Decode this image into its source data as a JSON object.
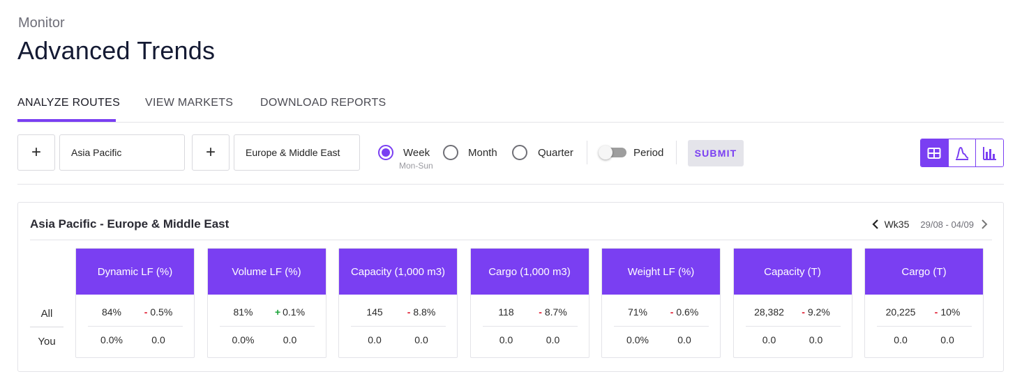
{
  "header": {
    "supertitle": "Monitor",
    "title": "Advanced Trends"
  },
  "tabs": [
    {
      "label": "ANALYZE ROUTES",
      "active": true
    },
    {
      "label": "VIEW MARKETS",
      "active": false
    },
    {
      "label": "DOWNLOAD REPORTS",
      "active": false
    }
  ],
  "toolbar": {
    "origin": {
      "add_label": "+",
      "value": "Asia Pacific"
    },
    "destination": {
      "add_label": "+",
      "value": "Europe & Middle East"
    },
    "periods": [
      {
        "label": "Week",
        "sublabel": "Mon-Sun",
        "checked": true
      },
      {
        "label": "Month",
        "checked": false
      },
      {
        "label": "Quarter",
        "checked": false
      }
    ],
    "period_toggle": {
      "label": "Period",
      "on": false
    },
    "submit_label": "SUBMIT",
    "views": [
      {
        "icon": "table-grid-icon",
        "active": true
      },
      {
        "icon": "curve-chart-icon",
        "active": false
      },
      {
        "icon": "bar-chart-icon",
        "active": false
      }
    ]
  },
  "card": {
    "title": "Asia Pacific - Europe & Middle East",
    "week": "Wk35",
    "date_range": "29/08 - 04/09",
    "row_labels": {
      "all": "All",
      "you": "You"
    },
    "metrics": [
      {
        "name": "Dynamic LF (%)",
        "all_value": "84%",
        "all_change_sign": "-",
        "all_change": "0.5%",
        "you_value": "0.0%",
        "you_change": "0.0"
      },
      {
        "name": "Volume LF (%)",
        "all_value": "81%",
        "all_change_sign": "+",
        "all_change": "0.1%",
        "you_value": "0.0%",
        "you_change": "0.0"
      },
      {
        "name": "Capacity (1,000 m3)",
        "all_value": "145",
        "all_change_sign": "-",
        "all_change": "8.8%",
        "you_value": "0.0",
        "you_change": "0.0"
      },
      {
        "name": "Cargo (1,000 m3)",
        "all_value": "118",
        "all_change_sign": "-",
        "all_change": "8.7%",
        "you_value": "0.0",
        "you_change": "0.0"
      },
      {
        "name": "Weight LF (%)",
        "all_value": "71%",
        "all_change_sign": "-",
        "all_change": "0.6%",
        "you_value": "0.0%",
        "you_change": "0.0"
      },
      {
        "name": "Capacity (T)",
        "all_value": "28,382",
        "all_change_sign": "-",
        "all_change": "9.2%",
        "you_value": "0.0",
        "you_change": "0.0"
      },
      {
        "name": "Cargo (T)",
        "all_value": "20,225",
        "all_change_sign": "-",
        "all_change": "10%",
        "you_value": "0.0",
        "you_change": "0.0"
      }
    ]
  },
  "colors": {
    "accent": "#7a3ff2",
    "negative": "#e0192f",
    "positive": "#1aa338"
  }
}
